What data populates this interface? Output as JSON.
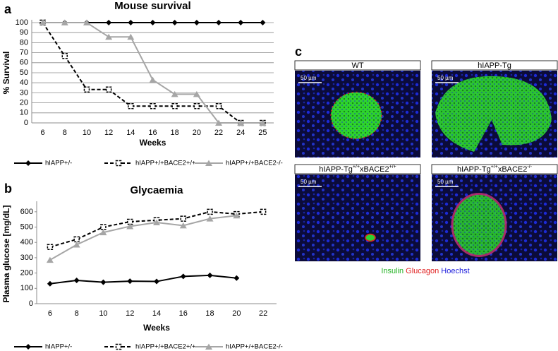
{
  "chart_data": [
    {
      "type": "line",
      "panel": "a",
      "title": "Mouse survival",
      "x_label": "Weeks",
      "y_label": "% Survival",
      "categories": [
        "6",
        "8",
        "10",
        "12",
        "14",
        "16",
        "18",
        "20",
        "22",
        "24",
        "25"
      ],
      "ylim": [
        0,
        100
      ],
      "yticks": [
        0,
        10,
        20,
        30,
        40,
        50,
        60,
        70,
        80,
        90,
        100
      ],
      "grid": true,
      "series": [
        {
          "name": "hIAPP+/-",
          "color": "#000000",
          "line_style": "solid",
          "marker": "diamond",
          "values": [
            100,
            100,
            100,
            100,
            100,
            100,
            100,
            100,
            100,
            100,
            100
          ]
        },
        {
          "name": "hIAPP+/+BACE2+/+",
          "color": "#000000",
          "line_style": "dashed",
          "marker": "square",
          "values": [
            100,
            66.7,
            33.3,
            33.3,
            16.7,
            16.7,
            16.7,
            16.7,
            16.7,
            0,
            0
          ]
        },
        {
          "name": "hIAPP+/+BACE2-/-",
          "color": "#a6a6a6",
          "line_style": "solid",
          "marker": "triangle",
          "values": [
            100,
            100,
            100,
            85.7,
            85.7,
            42.9,
            28.6,
            28.6,
            0,
            0,
            0
          ]
        }
      ]
    },
    {
      "type": "line",
      "panel": "b",
      "title": "Glycaemia",
      "x_label": "Weeks",
      "y_label": "Plasma glucose [mg/dL]",
      "categories": [
        "6",
        "8",
        "10",
        "12",
        "14",
        "16",
        "18",
        "20",
        "22"
      ],
      "ylim": [
        0,
        650
      ],
      "yticks": [
        0,
        100,
        200,
        300,
        400,
        500,
        600
      ],
      "grid": false,
      "series": [
        {
          "name": "hIAPP+/-",
          "color": "#000000",
          "line_style": "solid",
          "marker": "diamond",
          "values": [
            130,
            152,
            140,
            147,
            145,
            178,
            185,
            167,
            null
          ]
        },
        {
          "name": "hIAPP+/+BACE2+/+",
          "color": "#000000",
          "line_style": "dashed",
          "marker": "square",
          "values": [
            370,
            420,
            500,
            535,
            545,
            555,
            600,
            585,
            600
          ]
        },
        {
          "name": "hIAPP+/+BACE2-/-",
          "color": "#a6a6a6",
          "line_style": "solid",
          "marker": "triangle",
          "values": [
            285,
            385,
            465,
            505,
            530,
            510,
            555,
            575,
            null
          ]
        }
      ]
    }
  ],
  "images": {
    "panel": "c",
    "scale_bar": "50 µm",
    "tiles": [
      {
        "label": [
          {
            "text": "WT"
          }
        ]
      },
      {
        "label": [
          {
            "text": "hIAPP-Tg"
          }
        ]
      },
      {
        "label": [
          {
            "text": "hIAPP-Tg"
          },
          {
            "text": "+/+",
            "sup": true
          },
          {
            "text": "xBACE2"
          },
          {
            "text": "+/+",
            "sup": true
          }
        ]
      },
      {
        "label": [
          {
            "text": "hIAPP-Tg"
          },
          {
            "text": "+/+",
            "sup": true
          },
          {
            "text": "xBACE2"
          },
          {
            "text": "-/-",
            "sup": true
          }
        ]
      }
    ],
    "stains": [
      {
        "name": "Insulin",
        "color": "#22b222"
      },
      {
        "name": "Glucagon",
        "color": "#e02020"
      },
      {
        "name": "Hoechst",
        "color": "#1a1adc"
      }
    ]
  }
}
